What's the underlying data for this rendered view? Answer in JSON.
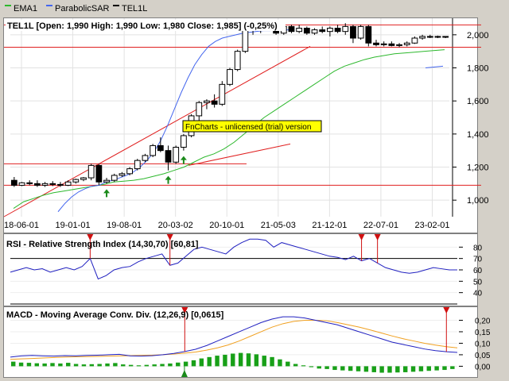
{
  "legend": [
    {
      "label": "EMA1",
      "color": "#2db82d"
    },
    {
      "label": "ParabolicSAR",
      "color": "#4466ee"
    },
    {
      "label": "TEL1L",
      "color": "#000000"
    }
  ],
  "price_panel": {
    "title": "TEL1L [Open: 1,990  High: 1,990  Low: 1,980  Close: 1,985] (-0,25%)",
    "watermark": "FnCharts - unlicensed (trial) version"
  },
  "rsi_panel": {
    "title": "RSI - Relative Strength Index (14,30,70) [60,81]"
  },
  "macd_panel": {
    "title": "MACD - Moving Average Conv. Div. (12,26,9) [0,0615]"
  },
  "colors": {
    "up_candle": "#ffffff",
    "down_candle": "#000000",
    "ema": "#2db82d",
    "sar": "#4466ee",
    "trend_line": "#e02020",
    "signal_up": "#1a8a1a",
    "signal_down": "#d01010",
    "macd_line": "#2020c0",
    "macd_signal": "#f0a020",
    "macd_hist": "#18a018",
    "rsi_line": "#2020c0"
  },
  "chart_data": [
    {
      "type": "candlestick",
      "title": "TEL1L [Open: 1,990  High: 1,990  Low: 1,980  Close: 1,985] (-0,25%)",
      "x_tick_labels": [
        "18-06-01",
        "19-01-01",
        "19-08-01",
        "20-03-02",
        "20-10-01",
        "21-05-03",
        "21-12-01",
        "22-07-01",
        "23-02-01"
      ],
      "ylim": [
        900,
        2100
      ],
      "y_ticks": [
        1000,
        1200,
        1400,
        1600,
        1800,
        2000
      ],
      "y_tick_labels": [
        "1,000",
        "1,200",
        "1,400",
        "1,600",
        "1,800",
        "2,000"
      ],
      "candles": [
        {
          "o": 1120,
          "h": 1140,
          "l": 1080,
          "c": 1090
        },
        {
          "o": 1090,
          "h": 1110,
          "l": 1085,
          "c": 1105
        },
        {
          "o": 1105,
          "h": 1120,
          "l": 1090,
          "c": 1100
        },
        {
          "o": 1100,
          "h": 1120,
          "l": 1080,
          "c": 1090
        },
        {
          "o": 1090,
          "h": 1110,
          "l": 1080,
          "c": 1100
        },
        {
          "o": 1100,
          "h": 1115,
          "l": 1085,
          "c": 1095
        },
        {
          "o": 1095,
          "h": 1110,
          "l": 1080,
          "c": 1090
        },
        {
          "o": 1090,
          "h": 1120,
          "l": 1085,
          "c": 1110
        },
        {
          "o": 1110,
          "h": 1130,
          "l": 1100,
          "c": 1125
        },
        {
          "o": 1125,
          "h": 1140,
          "l": 1115,
          "c": 1135
        },
        {
          "o": 1135,
          "h": 1220,
          "l": 1120,
          "c": 1210
        },
        {
          "o": 1210,
          "h": 1220,
          "l": 1090,
          "c": 1110
        },
        {
          "o": 1110,
          "h": 1135,
          "l": 1100,
          "c": 1120
        },
        {
          "o": 1120,
          "h": 1160,
          "l": 1110,
          "c": 1150
        },
        {
          "o": 1150,
          "h": 1170,
          "l": 1140,
          "c": 1160
        },
        {
          "o": 1160,
          "h": 1200,
          "l": 1150,
          "c": 1190
        },
        {
          "o": 1190,
          "h": 1250,
          "l": 1180,
          "c": 1240
        },
        {
          "o": 1240,
          "h": 1280,
          "l": 1230,
          "c": 1270
        },
        {
          "o": 1270,
          "h": 1340,
          "l": 1260,
          "c": 1330
        },
        {
          "o": 1330,
          "h": 1380,
          "l": 1290,
          "c": 1300
        },
        {
          "o": 1300,
          "h": 1330,
          "l": 1180,
          "c": 1230
        },
        {
          "o": 1230,
          "h": 1330,
          "l": 1220,
          "c": 1320
        },
        {
          "o": 1320,
          "h": 1400,
          "l": 1300,
          "c": 1390
        },
        {
          "o": 1390,
          "h": 1520,
          "l": 1380,
          "c": 1510
        },
        {
          "o": 1510,
          "h": 1600,
          "l": 1470,
          "c": 1590
        },
        {
          "o": 1590,
          "h": 1610,
          "l": 1550,
          "c": 1600
        },
        {
          "o": 1600,
          "h": 1640,
          "l": 1560,
          "c": 1580
        },
        {
          "o": 1580,
          "h": 1720,
          "l": 1570,
          "c": 1700
        },
        {
          "o": 1700,
          "h": 1800,
          "l": 1690,
          "c": 1790
        },
        {
          "o": 1790,
          "h": 1910,
          "l": 1780,
          "c": 1900
        },
        {
          "o": 1900,
          "h": 2040,
          "l": 1890,
          "c": 2030
        },
        {
          "o": 2030,
          "h": 2060,
          "l": 2000,
          "c": 2040
        },
        {
          "o": 2040,
          "h": 2070,
          "l": 2010,
          "c": 2050
        },
        {
          "o": 2050,
          "h": 2070,
          "l": 2030,
          "c": 2060
        },
        {
          "o": 2060,
          "h": 2070,
          "l": 2000,
          "c": 2010
        },
        {
          "o": 2010,
          "h": 2060,
          "l": 2000,
          "c": 2050
        },
        {
          "o": 2050,
          "h": 2060,
          "l": 2010,
          "c": 2020
        },
        {
          "o": 2020,
          "h": 2060,
          "l": 2010,
          "c": 2040
        },
        {
          "o": 2040,
          "h": 2050,
          "l": 2000,
          "c": 2010
        },
        {
          "o": 2010,
          "h": 2040,
          "l": 2000,
          "c": 2030
        },
        {
          "o": 2030,
          "h": 2050,
          "l": 2010,
          "c": 2020
        },
        {
          "o": 2020,
          "h": 2050,
          "l": 1990,
          "c": 2040
        },
        {
          "o": 2040,
          "h": 2060,
          "l": 2010,
          "c": 2020
        },
        {
          "o": 2020,
          "h": 2070,
          "l": 2000,
          "c": 2050
        },
        {
          "o": 2050,
          "h": 2060,
          "l": 1950,
          "c": 1980
        },
        {
          "o": 1980,
          "h": 2060,
          "l": 1970,
          "c": 2050
        },
        {
          "o": 2050,
          "h": 2060,
          "l": 1930,
          "c": 1950
        },
        {
          "o": 1950,
          "h": 1970,
          "l": 1930,
          "c": 1940
        },
        {
          "o": 1940,
          "h": 1960,
          "l": 1930,
          "c": 1945
        },
        {
          "o": 1945,
          "h": 1960,
          "l": 1930,
          "c": 1935
        },
        {
          "o": 1935,
          "h": 1950,
          "l": 1925,
          "c": 1940
        },
        {
          "o": 1940,
          "h": 1960,
          "l": 1930,
          "c": 1950
        },
        {
          "o": 1950,
          "h": 1990,
          "l": 1945,
          "c": 1980
        },
        {
          "o": 1980,
          "h": 2000,
          "l": 1970,
          "c": 1990
        },
        {
          "o": 1990,
          "h": 2000,
          "l": 1980,
          "c": 1985
        },
        {
          "o": 1985,
          "h": 1995,
          "l": 1980,
          "c": 1990
        },
        {
          "o": 1990,
          "h": 1990,
          "l": 1980,
          "c": 1985
        }
      ],
      "ema": [
        950,
        990,
        1010,
        1030,
        1045,
        1055,
        1065,
        1075,
        1085,
        1095,
        1110,
        1115,
        1120,
        1130,
        1145,
        1160,
        1180,
        1200,
        1230,
        1260,
        1280,
        1310,
        1350,
        1400,
        1450,
        1500,
        1540,
        1580,
        1620,
        1660,
        1700,
        1740,
        1780,
        1810,
        1830,
        1850,
        1865,
        1875,
        1885,
        1890,
        1895,
        1900,
        1905,
        1910
      ],
      "sar": [
        930,
        980,
        1020,
        1050,
        1070,
        1085,
        1090,
        1110,
        1120,
        1135,
        1150,
        1170,
        1200,
        1240,
        1290,
        1360,
        1450,
        1550,
        1650,
        1740,
        1820,
        1880,
        1930,
        1960,
        1980,
        1990,
        2000,
        2010,
        2015,
        2020,
        2025,
        2025,
        2030,
        2030,
        2030
      ],
      "signals_up": [
        12,
        20,
        22
      ],
      "annotation_lines": {
        "horizontal": [
          1220,
          1090,
          2060,
          1925
        ],
        "trend": [
          [
            900,
            1930
          ],
          [
            1210,
            1340
          ]
        ]
      }
    },
    {
      "type": "line",
      "title": "RSI - Relative Strength Index (14,30,70) [60,81]",
      "ylim": [
        30,
        90
      ],
      "y_ticks": [
        40,
        50,
        60,
        70,
        80
      ],
      "y_tick_labels": [
        "40",
        "50",
        "60",
        "70",
        "80"
      ],
      "levels": [
        70,
        30
      ],
      "values": [
        58,
        60,
        62,
        60,
        61,
        58,
        60,
        62,
        60,
        63,
        70,
        52,
        55,
        60,
        62,
        63,
        67,
        70,
        72,
        74,
        64,
        66,
        72,
        78,
        80,
        78,
        76,
        74,
        80,
        84,
        87,
        87,
        86,
        80,
        84,
        82,
        80,
        78,
        76,
        74,
        72,
        71,
        69,
        72,
        68,
        70,
        66,
        62,
        60,
        58,
        57,
        58,
        60,
        62,
        61,
        60,
        60
      ],
      "signals_down": [
        10,
        20,
        44,
        46
      ]
    },
    {
      "type": "line",
      "title": "MACD - Moving Average Conv. Div. (12,26,9) [0,0615]",
      "ylim": [
        -0.04,
        0.25
      ],
      "y_ticks": [
        0.0,
        0.05,
        0.1,
        0.15,
        0.2
      ],
      "y_tick_labels": [
        "0,00",
        "0,05",
        "0,10",
        "0,15",
        "0,20"
      ],
      "macd": [
        0.04,
        0.045,
        0.047,
        0.045,
        0.044,
        0.046,
        0.045,
        0.047,
        0.048,
        0.05,
        0.052,
        0.045,
        0.044,
        0.046,
        0.05,
        0.056,
        0.064,
        0.074,
        0.09,
        0.11,
        0.13,
        0.15,
        0.17,
        0.19,
        0.205,
        0.215,
        0.215,
        0.21,
        0.2,
        0.19,
        0.18,
        0.165,
        0.15,
        0.135,
        0.12,
        0.105,
        0.095,
        0.085,
        0.075,
        0.068,
        0.063,
        0.06
      ],
      "signal": [
        0.03,
        0.032,
        0.034,
        0.036,
        0.038,
        0.04,
        0.041,
        0.042,
        0.043,
        0.044,
        0.045,
        0.046,
        0.047,
        0.048,
        0.05,
        0.053,
        0.057,
        0.062,
        0.07,
        0.08,
        0.093,
        0.11,
        0.13,
        0.15,
        0.17,
        0.185,
        0.195,
        0.2,
        0.2,
        0.198,
        0.19,
        0.18,
        0.17,
        0.158,
        0.145,
        0.132,
        0.12,
        0.11,
        0.1,
        0.092,
        0.085,
        0.08
      ],
      "hist": [
        0.02,
        0.016,
        0.015,
        0.013,
        0.012,
        0.014,
        0.012,
        0.015,
        0.01,
        0.008,
        0.009,
        0.01,
        0.012,
        0.014,
        0.008,
        0.006,
        0.004,
        0.006,
        0.008,
        0.01,
        0.012,
        0.016,
        0.02,
        0.026,
        0.034,
        0.04,
        0.046,
        0.05,
        0.055,
        0.058,
        0.056,
        0.052,
        0.046,
        0.04,
        0.03,
        0.02,
        0.01,
        0.004,
        -0.004,
        -0.01,
        -0.012,
        -0.016,
        -0.018,
        -0.02,
        -0.022,
        -0.024,
        -0.026,
        -0.028,
        -0.028,
        -0.027,
        -0.026,
        -0.024,
        -0.022,
        -0.02,
        -0.018,
        -0.016,
        -0.012
      ],
      "signals_up": [
        22
      ],
      "signals_down": [
        16,
        40
      ]
    }
  ]
}
